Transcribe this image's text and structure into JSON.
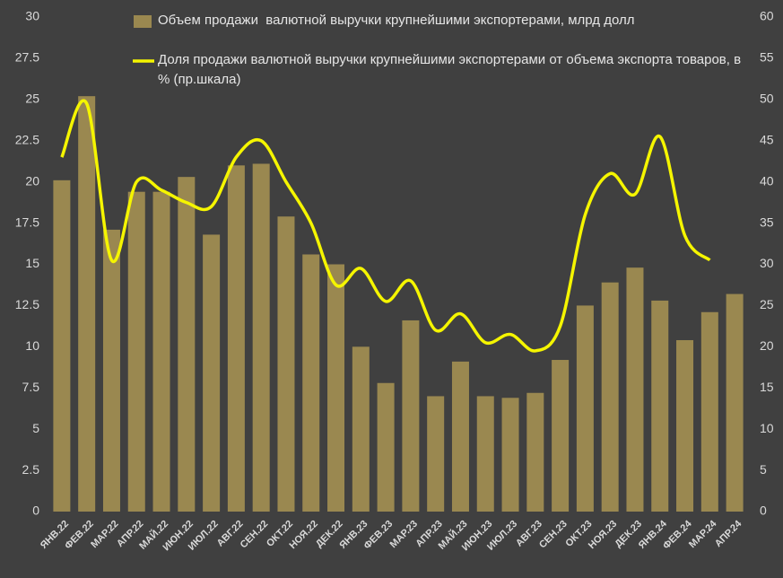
{
  "chart_data": {
    "type": "bar_line",
    "categories": [
      "ЯНВ.22",
      "ФЕВ.22",
      "МАР.22",
      "АПР.22",
      "МАЙ.22",
      "ИЮН.22",
      "ИЮЛ.22",
      "АВГ.22",
      "СЕН.22",
      "ОКТ.22",
      "НОЯ.22",
      "ДЕК.22",
      "ЯНВ.23",
      "ФЕВ.23",
      "МАР.23",
      "АПР.23",
      "МАЙ.23",
      "ИЮН.23",
      "ИЮЛ.23",
      "АВГ.23",
      "СЕН.23",
      "ОКТ.23",
      "НОЯ.23",
      "ДЕК.23",
      "ЯНВ.24",
      "ФЕВ.24",
      "МАР.24",
      "АПР.24"
    ],
    "series": [
      {
        "name": "Объем продажи  валютной выручки крупнейшими экспортерами, млрд долл",
        "type": "bar",
        "color": "#9a8850",
        "values": [
          20.1,
          25.2,
          17.1,
          19.4,
          19.4,
          20.3,
          16.8,
          21.0,
          21.1,
          17.9,
          15.6,
          15.0,
          10.0,
          7.8,
          11.6,
          7.0,
          9.1,
          7.0,
          6.9,
          7.2,
          9.2,
          12.5,
          13.9,
          14.8,
          12.8,
          10.4,
          12.1,
          13.2
        ]
      },
      {
        "name": "Доля продажи валютной выручки крупнейшими экспортерами от объема экспорта товаров, в % (пр.шкала)",
        "type": "line",
        "axis": "y2",
        "color": "#f5f500",
        "values": [
          43,
          49.5,
          30.5,
          40,
          39,
          37.5,
          37,
          43,
          45,
          40,
          35,
          27.5,
          29.5,
          25.5,
          28,
          22,
          24,
          20.5,
          21.5,
          19.5,
          22.5,
          36,
          41,
          38.5,
          45.5,
          33.5,
          30.5,
          null
        ]
      }
    ],
    "ylim": [
      0,
      30
    ],
    "yticks": [
      0,
      2.5,
      5,
      7.5,
      10,
      12.5,
      15,
      17.5,
      20,
      22.5,
      25,
      27.5,
      30
    ],
    "y2lim": [
      0,
      60
    ],
    "y2ticks": [
      0,
      5,
      10,
      15,
      20,
      25,
      30,
      35,
      40,
      45,
      50,
      55,
      60
    ]
  }
}
